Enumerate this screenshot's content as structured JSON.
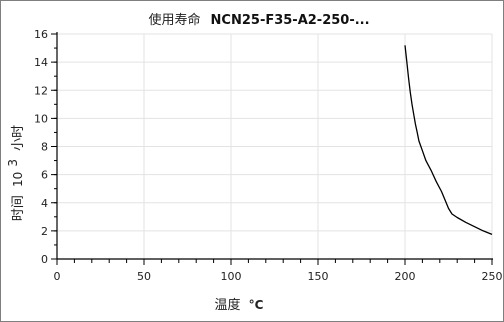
{
  "chart_data": {
    "type": "line",
    "title_cn": "使用寿命",
    "title_code": "NCN25-F35-A2-250-...",
    "xlabel_cn": "温度",
    "xlabel_unit": "°C",
    "ylabel_cn_1": "时间",
    "ylabel_exp": "10",
    "ylabel_sup": "3",
    "ylabel_cn_2": "小时",
    "xlim": [
      0,
      250
    ],
    "ylim": [
      0,
      16
    ],
    "x_ticks": [
      0,
      50,
      100,
      150,
      200,
      250
    ],
    "y_ticks": [
      0,
      2,
      4,
      6,
      8,
      10,
      12,
      14,
      16
    ],
    "grid": true,
    "series": [
      {
        "color": "#000000",
        "points": [
          [
            200,
            15.2
          ],
          [
            201,
            14.1
          ],
          [
            202,
            12.9
          ],
          [
            203,
            11.9
          ],
          [
            204,
            11.0
          ],
          [
            205,
            10.3
          ],
          [
            206,
            9.6
          ],
          [
            207,
            9.0
          ],
          [
            208,
            8.4
          ],
          [
            210,
            7.7
          ],
          [
            212,
            7.0
          ],
          [
            215,
            6.3
          ],
          [
            218,
            5.5
          ],
          [
            221,
            4.8
          ],
          [
            223,
            4.2
          ],
          [
            225,
            3.6
          ],
          [
            227,
            3.2
          ],
          [
            230,
            2.95
          ],
          [
            235,
            2.6
          ],
          [
            240,
            2.3
          ],
          [
            245,
            2.0
          ],
          [
            250,
            1.75
          ]
        ]
      }
    ]
  }
}
